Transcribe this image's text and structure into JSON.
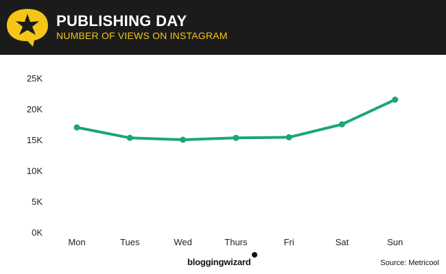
{
  "header": {
    "title": "PUBLISHING DAY",
    "subtitle": "NUMBER OF VIEWS ON INSTAGRAM",
    "logo_icon": "star-speech-bubble-icon",
    "background_color": "#1b1b1b",
    "logo_color": "#f5c518",
    "subtitle_color": "#f5c518"
  },
  "chart_data": {
    "type": "line",
    "categories": [
      "Mon",
      "Tues",
      "Wed",
      "Thurs",
      "Fri",
      "Sat",
      "Sun"
    ],
    "series": [
      {
        "values": [
          17000,
          15300,
          15000,
          15300,
          15400,
          17500,
          21500
        ],
        "color": "#1aa57a"
      }
    ],
    "y_ticks": [
      "0K",
      "5K",
      "10K",
      "15K",
      "20K",
      "25K"
    ],
    "ylim": [
      0,
      25000
    ],
    "title": "",
    "xlabel": "",
    "ylabel": "",
    "grid": false,
    "legend": "none"
  },
  "footer": {
    "brand": "bloggingwizard",
    "source": "Source: Metricool"
  }
}
